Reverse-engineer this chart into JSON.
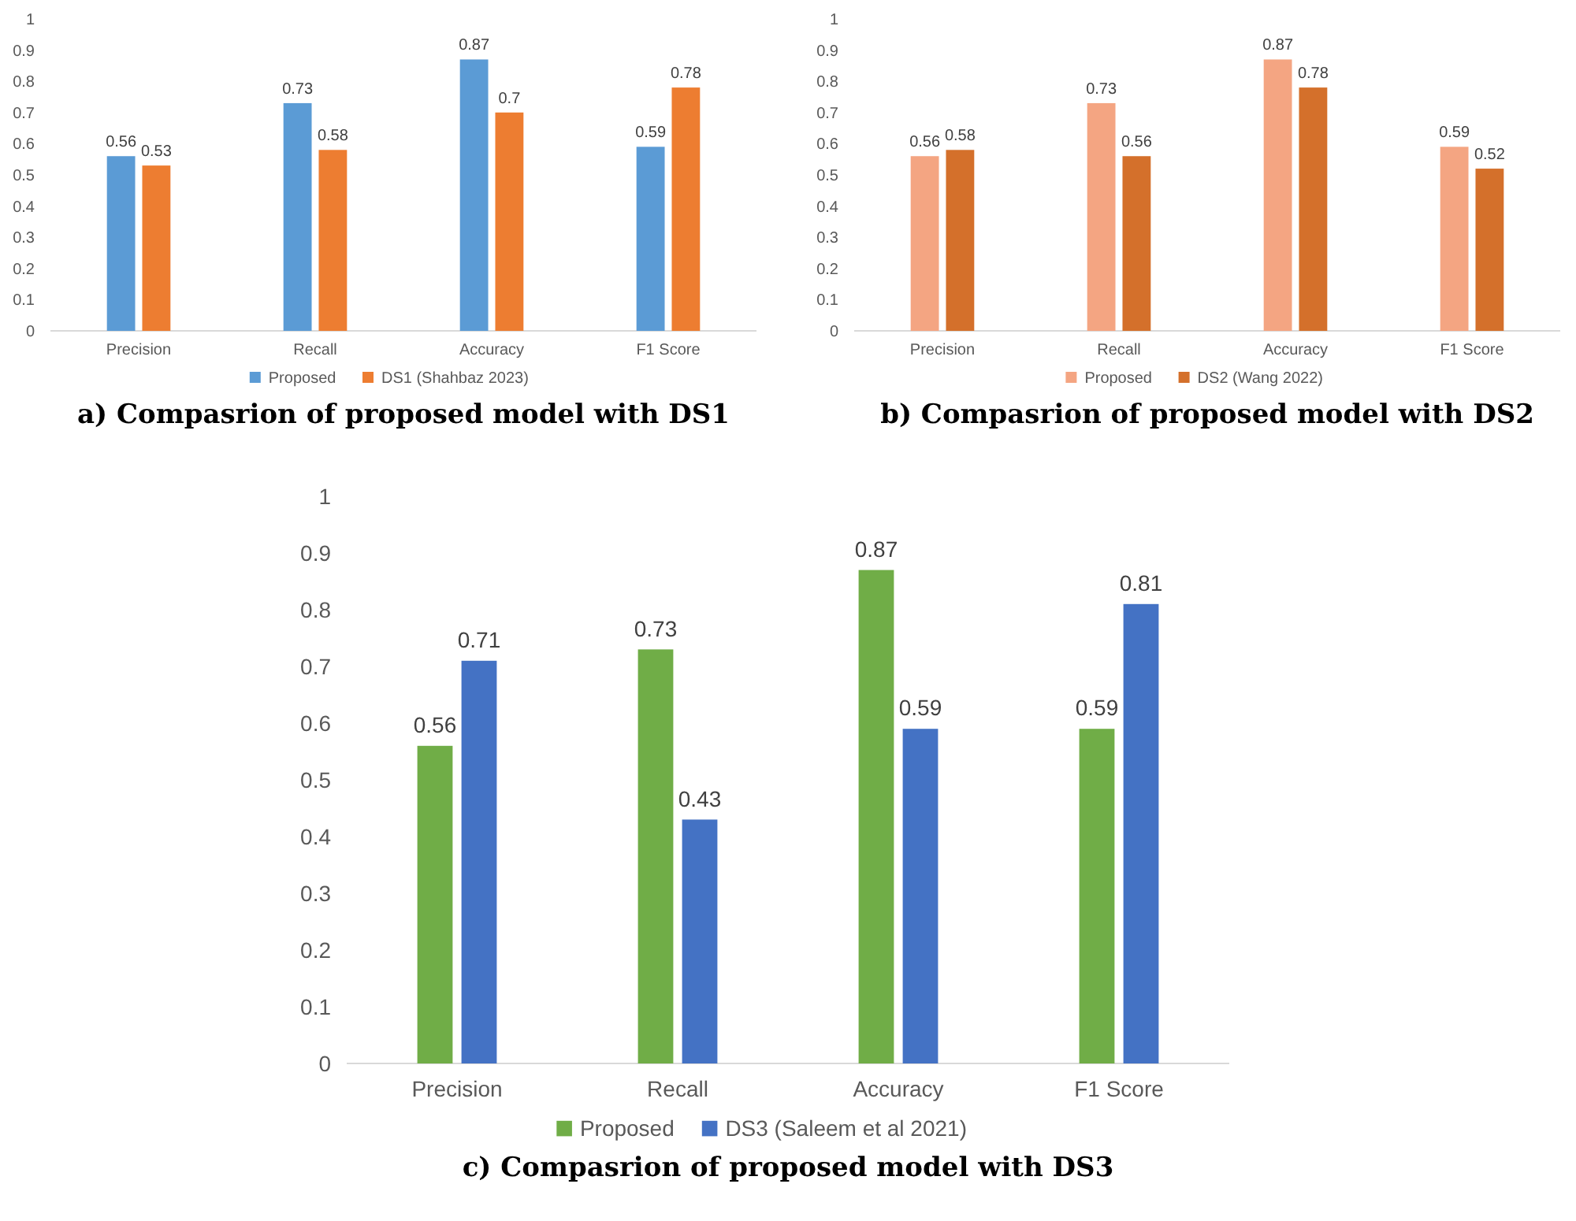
{
  "chart_data": [
    {
      "type": "bar",
      "title": "a) Compasrion of proposed model with DS1",
      "categories": [
        "Precision",
        "Recall",
        "Accuracy",
        "F1 Score"
      ],
      "series": [
        {
          "name": "Proposed",
          "color": "#5b9bd5",
          "values": [
            0.56,
            0.73,
            0.87,
            0.59
          ]
        },
        {
          "name": "DS1 (Shahbaz 2023)",
          "color": "#ed7d31",
          "values": [
            0.53,
            0.58,
            0.7,
            0.78
          ]
        }
      ],
      "ylim": [
        0,
        1
      ],
      "yticks": [
        0,
        0.1,
        0.2,
        0.3,
        0.4,
        0.5,
        0.6,
        0.7,
        0.8,
        0.9,
        1
      ],
      "data_labels": true,
      "legend": "bottom"
    },
    {
      "type": "bar",
      "title": "b) Compasrion of proposed model with DS2",
      "categories": [
        "Precision",
        "Recall",
        "Accuracy",
        "F1 Score"
      ],
      "series": [
        {
          "name": "Proposed",
          "color": "#f4a582",
          "values": [
            0.56,
            0.73,
            0.87,
            0.59
          ]
        },
        {
          "name": "DS2 (Wang 2022)",
          "color": "#d4702b",
          "values": [
            0.58,
            0.56,
            0.78,
            0.52
          ]
        }
      ],
      "ylim": [
        0,
        1
      ],
      "yticks": [
        0,
        0.1,
        0.2,
        0.3,
        0.4,
        0.5,
        0.6,
        0.7,
        0.8,
        0.9,
        1
      ],
      "data_labels": true,
      "legend": "bottom"
    },
    {
      "type": "bar",
      "title": "c) Compasrion of proposed model with DS3",
      "categories": [
        "Precision",
        "Recall",
        "Accuracy",
        "F1 Score"
      ],
      "series": [
        {
          "name": "Proposed",
          "color": "#70ad47",
          "values": [
            0.56,
            0.73,
            0.87,
            0.59
          ]
        },
        {
          "name": "DS3 (Saleem et al 2021)",
          "color": "#4472c4",
          "values": [
            0.71,
            0.43,
            0.59,
            0.81
          ]
        }
      ],
      "ylim": [
        0,
        1
      ],
      "yticks": [
        0,
        0.1,
        0.2,
        0.3,
        0.4,
        0.5,
        0.6,
        0.7,
        0.8,
        0.9,
        1
      ],
      "data_labels": true,
      "legend": "bottom"
    }
  ]
}
